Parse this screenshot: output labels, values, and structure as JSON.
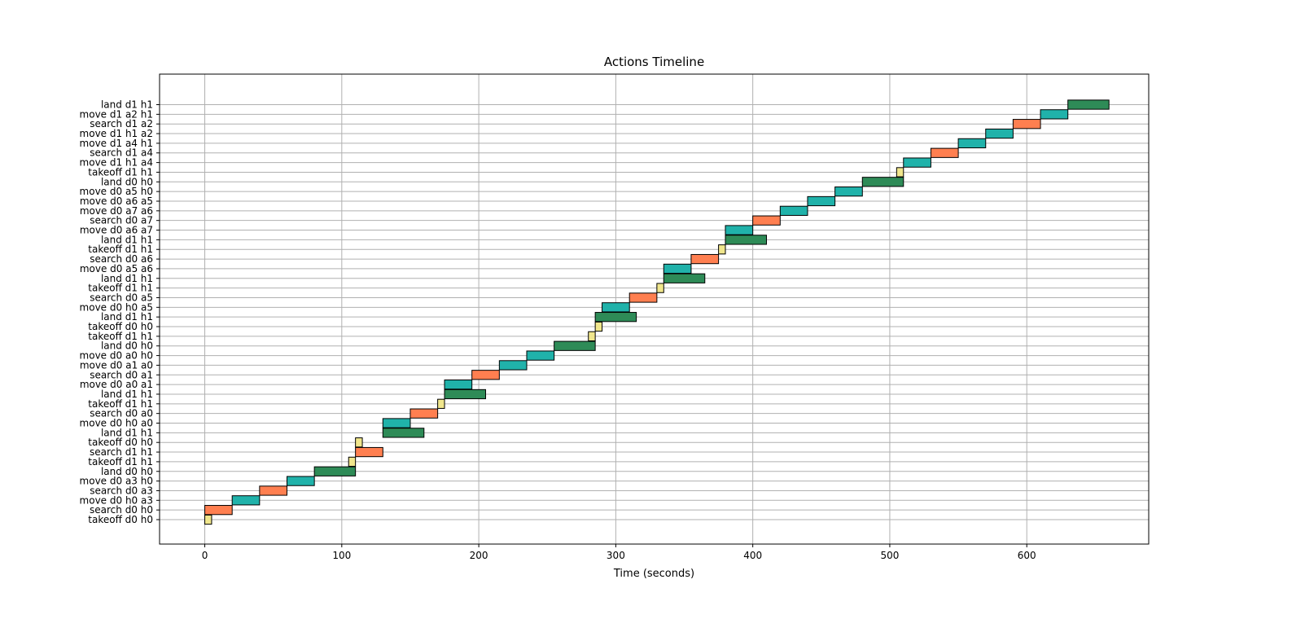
{
  "chart_data": {
    "type": "bar",
    "orientation": "horizontal",
    "title": "Actions Timeline",
    "xlabel": "Time (seconds)",
    "ylabel": "",
    "xlim": [
      -33,
      689
    ],
    "xticks": [
      0,
      100,
      200,
      300,
      400,
      500,
      600
    ],
    "grid": true,
    "legend": "none",
    "colors": {
      "takeoff": "#f0e68c",
      "search": "#ff7f50",
      "move": "#20b2aa",
      "land": "#2e8b57"
    },
    "actions": [
      {
        "label": "takeoff d0 h0",
        "kind": "takeoff",
        "start": 0,
        "end": 5
      },
      {
        "label": "search d0 h0",
        "kind": "search",
        "start": 0,
        "end": 20
      },
      {
        "label": "move d0 h0 a3",
        "kind": "move",
        "start": 20,
        "end": 40
      },
      {
        "label": "search d0 a3",
        "kind": "search",
        "start": 40,
        "end": 60
      },
      {
        "label": "move d0 a3 h0",
        "kind": "move",
        "start": 60,
        "end": 80
      },
      {
        "label": "land d0 h0",
        "kind": "land",
        "start": 80,
        "end": 110
      },
      {
        "label": "takeoff d1 h1",
        "kind": "takeoff",
        "start": 105,
        "end": 110
      },
      {
        "label": "search d1 h1",
        "kind": "search",
        "start": 110,
        "end": 130
      },
      {
        "label": "takeoff d0 h0",
        "kind": "takeoff",
        "start": 110,
        "end": 115
      },
      {
        "label": "land d1 h1",
        "kind": "land",
        "start": 130,
        "end": 160
      },
      {
        "label": "move d0 h0 a0",
        "kind": "move",
        "start": 130,
        "end": 150
      },
      {
        "label": "search d0 a0",
        "kind": "search",
        "start": 150,
        "end": 170
      },
      {
        "label": "takeoff d1 h1",
        "kind": "takeoff",
        "start": 170,
        "end": 175
      },
      {
        "label": "land d1 h1",
        "kind": "land",
        "start": 175,
        "end": 205
      },
      {
        "label": "move d0 a0 a1",
        "kind": "move",
        "start": 175,
        "end": 195
      },
      {
        "label": "search d0 a1",
        "kind": "search",
        "start": 195,
        "end": 215
      },
      {
        "label": "move d0 a1 a0",
        "kind": "move",
        "start": 215,
        "end": 235
      },
      {
        "label": "move d0 a0 h0",
        "kind": "move",
        "start": 235,
        "end": 255
      },
      {
        "label": "land d0 h0",
        "kind": "land",
        "start": 255,
        "end": 285
      },
      {
        "label": "takeoff d1 h1",
        "kind": "takeoff",
        "start": 280,
        "end": 285
      },
      {
        "label": "takeoff d0 h0",
        "kind": "takeoff",
        "start": 285,
        "end": 290
      },
      {
        "label": "land d1 h1",
        "kind": "land",
        "start": 285,
        "end": 315
      },
      {
        "label": "move d0 h0 a5",
        "kind": "move",
        "start": 290,
        "end": 310
      },
      {
        "label": "search d0 a5",
        "kind": "search",
        "start": 310,
        "end": 330
      },
      {
        "label": "takeoff d1 h1",
        "kind": "takeoff",
        "start": 330,
        "end": 335
      },
      {
        "label": "land d1 h1",
        "kind": "land",
        "start": 335,
        "end": 365
      },
      {
        "label": "move d0 a5 a6",
        "kind": "move",
        "start": 335,
        "end": 355
      },
      {
        "label": "search d0 a6",
        "kind": "search",
        "start": 355,
        "end": 375
      },
      {
        "label": "takeoff d1 h1",
        "kind": "takeoff",
        "start": 375,
        "end": 380
      },
      {
        "label": "land d1 h1",
        "kind": "land",
        "start": 380,
        "end": 410
      },
      {
        "label": "move d0 a6 a7",
        "kind": "move",
        "start": 380,
        "end": 400
      },
      {
        "label": "search d0 a7",
        "kind": "search",
        "start": 400,
        "end": 420
      },
      {
        "label": "move d0 a7 a6",
        "kind": "move",
        "start": 420,
        "end": 440
      },
      {
        "label": "move d0 a6 a5",
        "kind": "move",
        "start": 440,
        "end": 460
      },
      {
        "label": "move d0 a5 h0",
        "kind": "move",
        "start": 460,
        "end": 480
      },
      {
        "label": "land d0 h0",
        "kind": "land",
        "start": 480,
        "end": 510
      },
      {
        "label": "takeoff d1 h1",
        "kind": "takeoff",
        "start": 505,
        "end": 510
      },
      {
        "label": "move d1 h1 a4",
        "kind": "move",
        "start": 510,
        "end": 530
      },
      {
        "label": "search d1 a4",
        "kind": "search",
        "start": 530,
        "end": 550
      },
      {
        "label": "move d1 a4 h1",
        "kind": "move",
        "start": 550,
        "end": 570
      },
      {
        "label": "move d1 h1 a2",
        "kind": "move",
        "start": 570,
        "end": 590
      },
      {
        "label": "search d1 a2",
        "kind": "search",
        "start": 590,
        "end": 610
      },
      {
        "label": "move d1 a2 h1",
        "kind": "move",
        "start": 610,
        "end": 630
      },
      {
        "label": "land d1 h1",
        "kind": "land",
        "start": 630,
        "end": 660
      }
    ]
  }
}
